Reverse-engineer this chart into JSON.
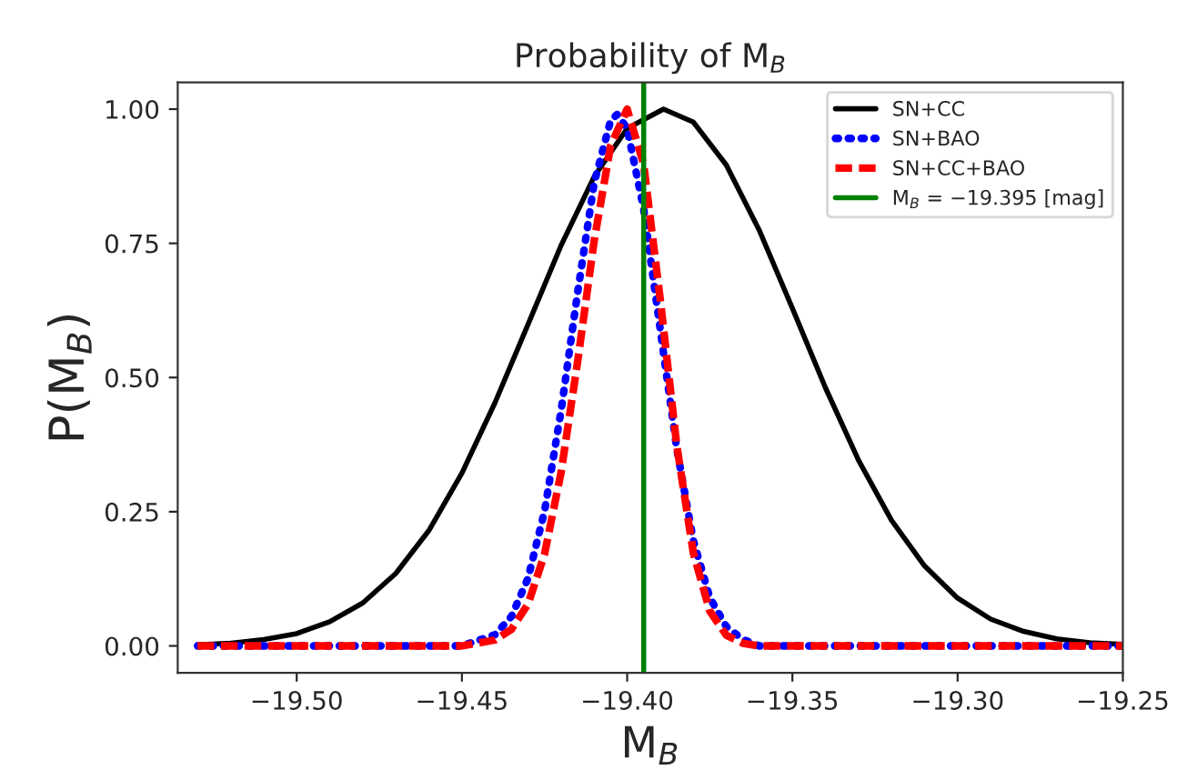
{
  "chart_data": {
    "type": "line",
    "title": "Probability of M$_{B}$",
    "xlabel": "M$_{B}$",
    "ylabel": "P(M$_{B}$)",
    "series": [
      {
        "name": "SN+CC",
        "color": "#000000",
        "line_style": "solid",
        "x": [
          -19.53,
          -19.52,
          -19.51,
          -19.5,
          -19.49,
          -19.48,
          -19.47,
          -19.46,
          -19.45,
          -19.44,
          -19.43,
          -19.42,
          -19.41,
          -19.4,
          -19.389,
          -19.38,
          -19.37,
          -19.36,
          -19.35,
          -19.34,
          -19.33,
          -19.32,
          -19.31,
          -19.3,
          -19.29,
          -19.28,
          -19.27,
          -19.26,
          -19.25
        ],
        "values": [
          0.002,
          0.005,
          0.012,
          0.023,
          0.045,
          0.08,
          0.135,
          0.215,
          0.322,
          0.453,
          0.599,
          0.746,
          0.874,
          0.964,
          1.0,
          0.976,
          0.896,
          0.774,
          0.629,
          0.481,
          0.346,
          0.234,
          0.149,
          0.089,
          0.05,
          0.027,
          0.013,
          0.006,
          0.003
        ]
      },
      {
        "name": "SN+BAO",
        "color": "#0000ff",
        "line_style": "dotted",
        "x": [
          -19.53,
          -19.45,
          -19.44,
          -19.435,
          -19.43,
          -19.425,
          -19.42,
          -19.415,
          -19.41,
          -19.405,
          -19.403,
          -19.4,
          -19.395,
          -19.39,
          -19.385,
          -19.38,
          -19.375,
          -19.37,
          -19.365,
          -19.36,
          -19.25
        ],
        "values": [
          0,
          0,
          0.021,
          0.055,
          0.126,
          0.251,
          0.438,
          0.658,
          0.862,
          0.979,
          0.99,
          0.964,
          0.814,
          0.59,
          0.368,
          0.197,
          0.09,
          0.036,
          0.012,
          0,
          0
        ]
      },
      {
        "name": "SN+CC+BAO",
        "color": "#ff0000",
        "line_style": "dashed",
        "x": [
          -19.53,
          -19.45,
          -19.44,
          -19.435,
          -19.43,
          -19.425,
          -19.42,
          -19.415,
          -19.41,
          -19.405,
          -19.4,
          -19.395,
          -19.39,
          -19.385,
          -19.38,
          -19.375,
          -19.37,
          -19.365,
          -19.36,
          -19.25
        ],
        "values": [
          0,
          0,
          0.011,
          0.031,
          0.078,
          0.171,
          0.323,
          0.529,
          0.754,
          0.932,
          1.0,
          0.897,
          0.646,
          0.374,
          0.174,
          0.065,
          0.02,
          0.005,
          0,
          0
        ]
      },
      {
        "name": "M$_{B}$ = −19.395 [mag]",
        "color": "#008000",
        "line_style": "solid",
        "x": [
          -19.395,
          -19.395
        ],
        "values": [
          -0.05,
          1.05
        ]
      }
    ],
    "xlim": [
      -19.536,
      -19.25
    ],
    "ylim": [
      -0.05,
      1.05
    ],
    "xticks": [
      {
        "value": -19.5,
        "label": "−19.50"
      },
      {
        "value": -19.45,
        "label": "−19.45"
      },
      {
        "value": -19.4,
        "label": "−19.40"
      },
      {
        "value": -19.35,
        "label": "−19.35"
      },
      {
        "value": -19.3,
        "label": "−19.30"
      },
      {
        "value": -19.25,
        "label": "−19.25"
      }
    ],
    "yticks": [
      {
        "value": 0,
        "label": "0.00"
      },
      {
        "value": 0.25,
        "label": "0.25"
      },
      {
        "value": 0.5,
        "label": "0.50"
      },
      {
        "value": 0.75,
        "label": "0.75"
      },
      {
        "value": 1,
        "label": "1.00"
      }
    ],
    "grid": false,
    "legend": "top right"
  }
}
